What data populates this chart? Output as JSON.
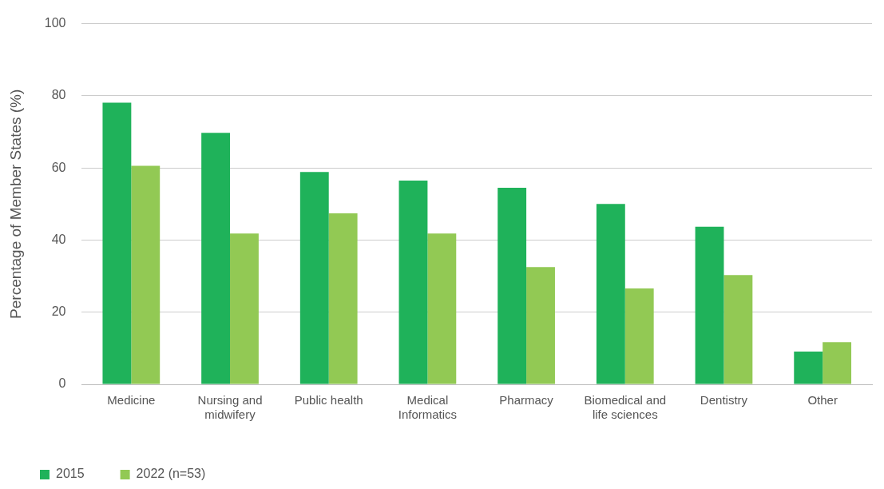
{
  "chart_data": {
    "type": "bar",
    "ylabel": "Percentage of Member States (%)",
    "categories": [
      "Medicine",
      "Nursing and midwifery",
      "Public health",
      "Medical Informatics",
      "Pharmacy",
      "Biomedical and life sciences",
      "Dentistry",
      "Other"
    ],
    "series": [
      {
        "name": "2015",
        "color": "#1fb25a",
        "values": [
          78.1,
          69.7,
          58.9,
          56.5,
          54.5,
          50.0,
          43.7,
          9.1
        ]
      },
      {
        "name": "2022 (n=53)",
        "color": "#92c954",
        "values": [
          60.6,
          41.8,
          47.4,
          41.8,
          32.5,
          26.6,
          30.3,
          11.7
        ]
      }
    ],
    "ylim": [
      0,
      100
    ],
    "yticks": [
      0,
      20,
      40,
      60,
      80,
      100
    ],
    "grid": "y",
    "legend": "bottom left"
  }
}
